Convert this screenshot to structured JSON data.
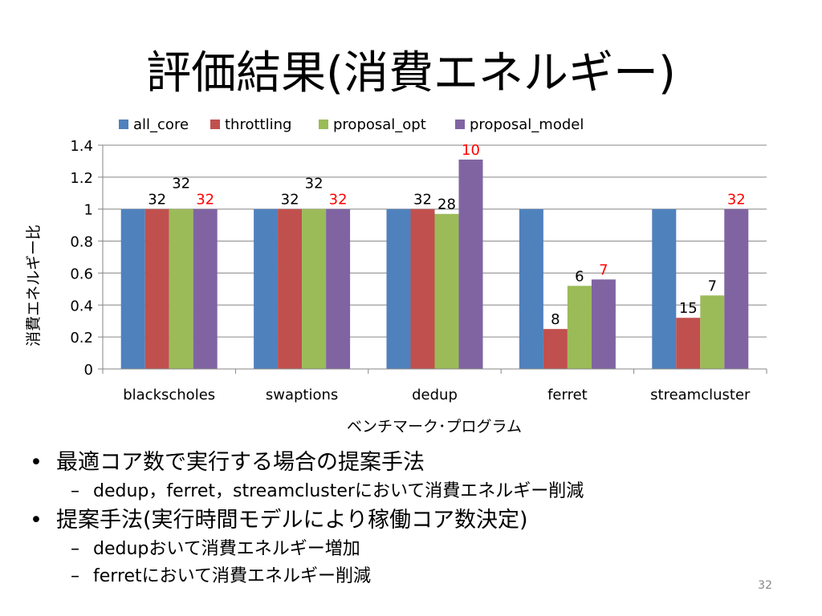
{
  "slide": {
    "title": "評価結果(消費エネルギー)",
    "page_number": "32",
    "bullets": [
      {
        "text": "最適コア数で実行する場合の提案手法",
        "sub": [
          "dedup，ferret，streamclusterにおいて消費エネルギー削減"
        ]
      },
      {
        "text": "提案手法(実行時間モデルにより稼働コア数決定)",
        "sub": [
          "dedupおいて消費エネルギー増加",
          "ferretにおいて消費エネルギー削減"
        ]
      }
    ],
    "bullet_symbol": "•",
    "sub_bullet_symbol": "–"
  },
  "chart_data": {
    "type": "bar",
    "categories": [
      "blackscholes",
      "swaptions",
      "dedup",
      "ferret",
      "streamcluster"
    ],
    "series": [
      {
        "name": "all_core",
        "color": "#4F81BD",
        "values": [
          1.0,
          1.0,
          1.0,
          1.0,
          1.0
        ]
      },
      {
        "name": "throttling",
        "color": "#C0504D",
        "values": [
          1.0,
          1.0,
          1.0,
          0.25,
          0.32
        ]
      },
      {
        "name": "proposal_opt",
        "color": "#9BBB59",
        "values": [
          1.0,
          1.0,
          0.97,
          0.52,
          0.46
        ]
      },
      {
        "name": "proposal_model",
        "color": "#8064A2",
        "values": [
          1.0,
          1.0,
          1.31,
          0.56,
          1.0
        ]
      }
    ],
    "labels": [
      {
        "category": 0,
        "series": 1,
        "text": "32",
        "color": "#000000"
      },
      {
        "category": 0,
        "series": 2,
        "text": "32",
        "color": "#000000"
      },
      {
        "category": 0,
        "series": 3,
        "text": "32",
        "color": "#FF0000"
      },
      {
        "category": 1,
        "series": 1,
        "text": "32",
        "color": "#000000"
      },
      {
        "category": 1,
        "series": 2,
        "text": "32",
        "color": "#000000"
      },
      {
        "category": 1,
        "series": 3,
        "text": "32",
        "color": "#FF0000"
      },
      {
        "category": 2,
        "series": 1,
        "text": "32",
        "color": "#000000"
      },
      {
        "category": 2,
        "series": 2,
        "text": "28",
        "color": "#000000"
      },
      {
        "category": 2,
        "series": 3,
        "text": "10",
        "color": "#FF0000"
      },
      {
        "category": 3,
        "series": 1,
        "text": "8",
        "color": "#000000"
      },
      {
        "category": 3,
        "series": 2,
        "text": "6",
        "color": "#000000"
      },
      {
        "category": 3,
        "series": 3,
        "text": "7",
        "color": "#FF0000"
      },
      {
        "category": 4,
        "series": 1,
        "text": "15",
        "color": "#000000"
      },
      {
        "category": 4,
        "series": 2,
        "text": "7",
        "color": "#000000"
      },
      {
        "category": 4,
        "series": 3,
        "text": "32",
        "color": "#FF0000"
      }
    ],
    "ylim": [
      0,
      1.4
    ],
    "yticks": [
      "0",
      "0.2",
      "0.4",
      "0.6",
      "0.8",
      "1",
      "1.2",
      "1.4"
    ],
    "xlabel": "ベンチマーク･プログラム",
    "ylabel": "消費エネルギー比",
    "grid": true,
    "legend": "top"
  }
}
